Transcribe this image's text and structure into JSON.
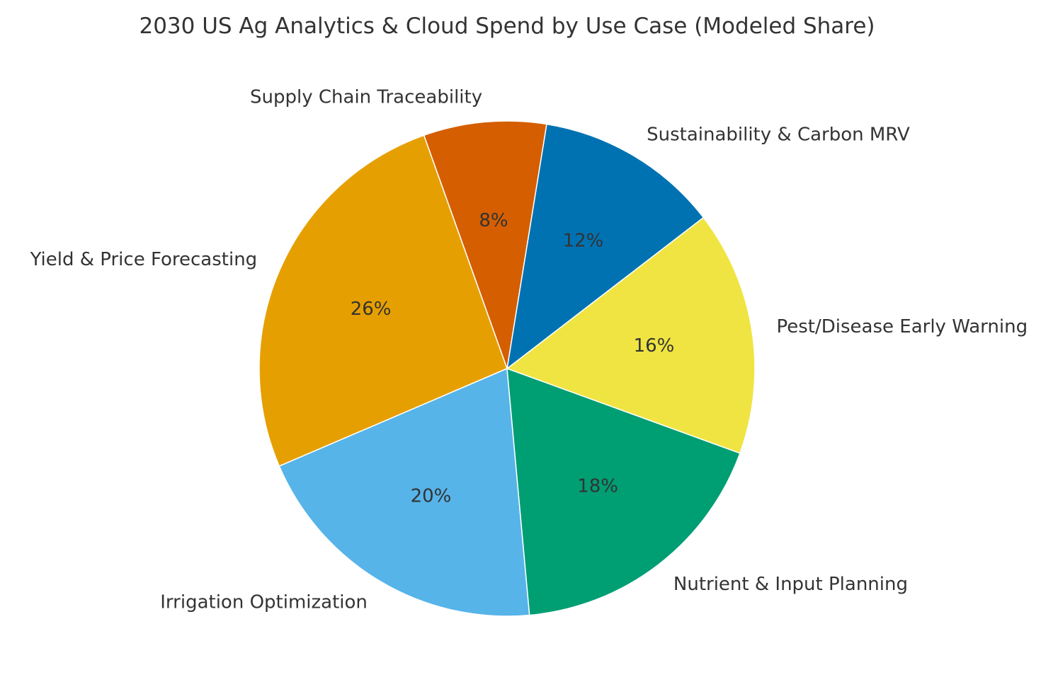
{
  "chart_data": {
    "type": "pie",
    "title": "2030 US Ag Analytics & Cloud Spend by Use Case (Modeled Share)",
    "slices": [
      {
        "label": "Pest/Disease Early Warning",
        "value": 16,
        "pct_label": "16%",
        "color": "#F0E442"
      },
      {
        "label": "Sustainability & Carbon MRV",
        "value": 12,
        "pct_label": "12%",
        "color": "#0072B2"
      },
      {
        "label": "Supply Chain Traceability",
        "value": 8,
        "pct_label": "8%",
        "color": "#D55E00"
      },
      {
        "label": "Yield & Price Forecasting",
        "value": 26,
        "pct_label": "26%",
        "color": "#E69F00"
      },
      {
        "label": "Irrigation Optimization",
        "value": 20,
        "pct_label": "20%",
        "color": "#56B4E9"
      },
      {
        "label": "Nutrient & Input Planning",
        "value": 18,
        "pct_label": "18%",
        "color": "#009E73"
      }
    ],
    "start_angle_deg": -20,
    "direction": "counterclockwise",
    "legend": "none"
  }
}
